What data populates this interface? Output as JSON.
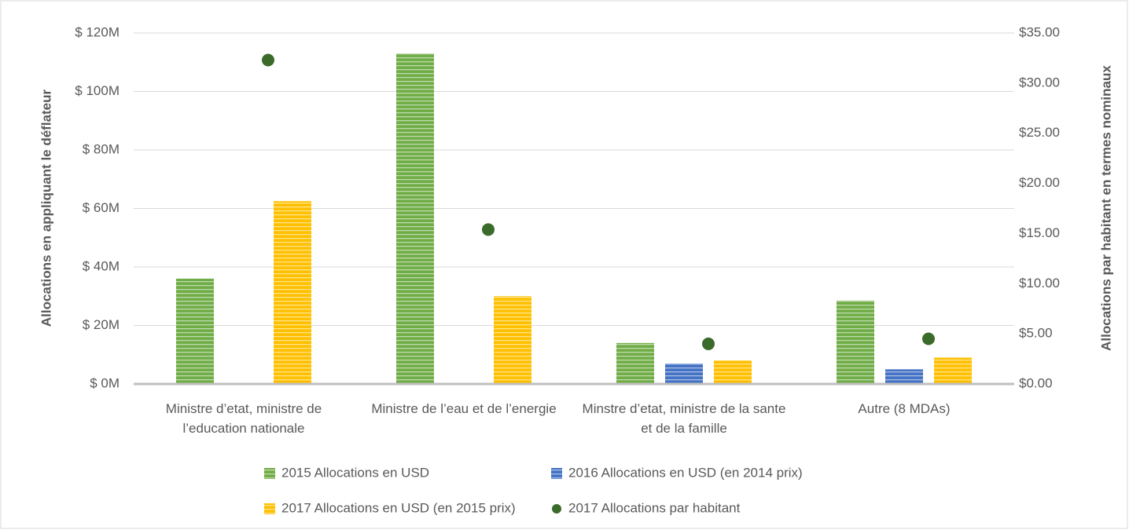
{
  "chart_data": {
    "type": "bar",
    "y_label": "Allocations en appliquant le déflateur",
    "y2_label": "Allocations par habitant en termes nominaux",
    "categories": [
      "Ministre d’etat, ministre de l’education nationale",
      "Ministre de l’eau et de l’energie",
      "Minstre d’etat, ministre de la sante et de la famille",
      "Autre (8 MDAs)"
    ],
    "series": [
      {
        "name": "2015 Allocations en USD",
        "color": "#70ad47",
        "axis": "y",
        "values": [
          36,
          113,
          14,
          28.5
        ]
      },
      {
        "name": "2016 Allocations en USD (en 2014 prix)",
        "color": "#4472c4",
        "axis": "y",
        "values": [
          null,
          null,
          7,
          5
        ]
      },
      {
        "name": "2017 Allocations en USD (en 2015 prix)",
        "color": "#ffc000",
        "axis": "y",
        "values": [
          62.5,
          30,
          8,
          9
        ]
      },
      {
        "name": "2017 Allocations par habitant",
        "color": "#3a6b2a",
        "axis": "y2",
        "type": "scatter",
        "values": [
          32.3,
          15.4,
          4.0,
          4.5
        ]
      }
    ],
    "ylim": [
      0,
      120
    ],
    "yticks": [
      {
        "value": 0,
        "label": "$ 0M"
      },
      {
        "value": 20,
        "label": "$ 20M"
      },
      {
        "value": 40,
        "label": "$ 40M"
      },
      {
        "value": 60,
        "label": "$ 60M"
      },
      {
        "value": 80,
        "label": "$ 80M"
      },
      {
        "value": 100,
        "label": "$ 100M"
      },
      {
        "value": 120,
        "label": "$ 120M"
      }
    ],
    "y2lim": [
      0,
      35
    ],
    "y2ticks": [
      {
        "value": 0,
        "label": "$0.00"
      },
      {
        "value": 5,
        "label": "$5.00"
      },
      {
        "value": 10,
        "label": "$10.00"
      },
      {
        "value": 15,
        "label": "$15.00"
      },
      {
        "value": 20,
        "label": "$20.00"
      },
      {
        "value": 25,
        "label": "$25.00"
      },
      {
        "value": 30,
        "label": "$30.00"
      },
      {
        "value": 35,
        "label": "$35.00"
      }
    ],
    "grid": true,
    "legend": "bottom"
  }
}
